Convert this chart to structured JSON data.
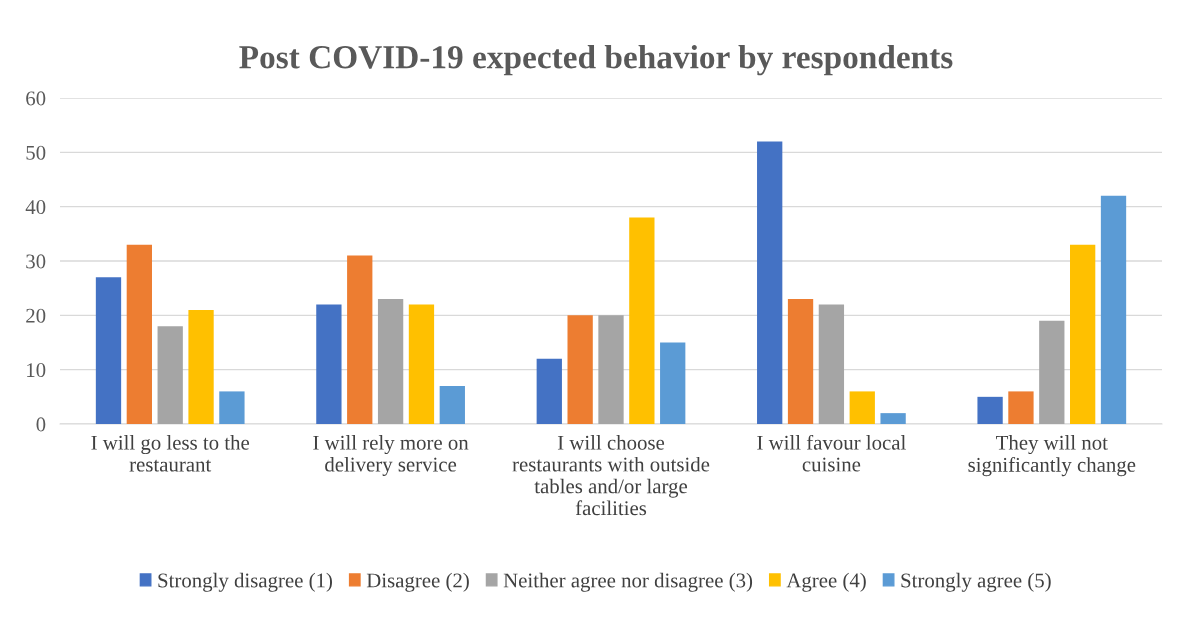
{
  "chart_data": {
    "type": "bar",
    "title": "Post COVID-19 expected behavior by respondents",
    "categories": [
      "I will go less to the restaurant",
      "I will rely more on delivery service",
      "I will choose restaurants with outside tables and/or large facilities",
      "I will favour local cuisine",
      "They will not significantly change"
    ],
    "series": [
      {
        "name": "Strongly disagree (1)",
        "color": "#4472c4",
        "values": [
          27,
          22,
          12,
          52,
          5
        ]
      },
      {
        "name": "Disagree (2)",
        "color": "#ed7d31",
        "values": [
          33,
          31,
          20,
          23,
          6
        ]
      },
      {
        "name": "Neither agree nor disagree (3)",
        "color": "#a5a5a5",
        "values": [
          18,
          23,
          20,
          22,
          19
        ]
      },
      {
        "name": "Agree (4)",
        "color": "#ffc000",
        "values": [
          21,
          22,
          38,
          6,
          33
        ]
      },
      {
        "name": "Strongly agree (5)",
        "color": "#5b9bd5",
        "values": [
          6,
          7,
          15,
          2,
          42
        ]
      }
    ],
    "ylim": [
      0,
      60
    ],
    "yticks": [
      0,
      10,
      20,
      30,
      40,
      50,
      60
    ],
    "grid": "y",
    "legend": "bottom"
  }
}
